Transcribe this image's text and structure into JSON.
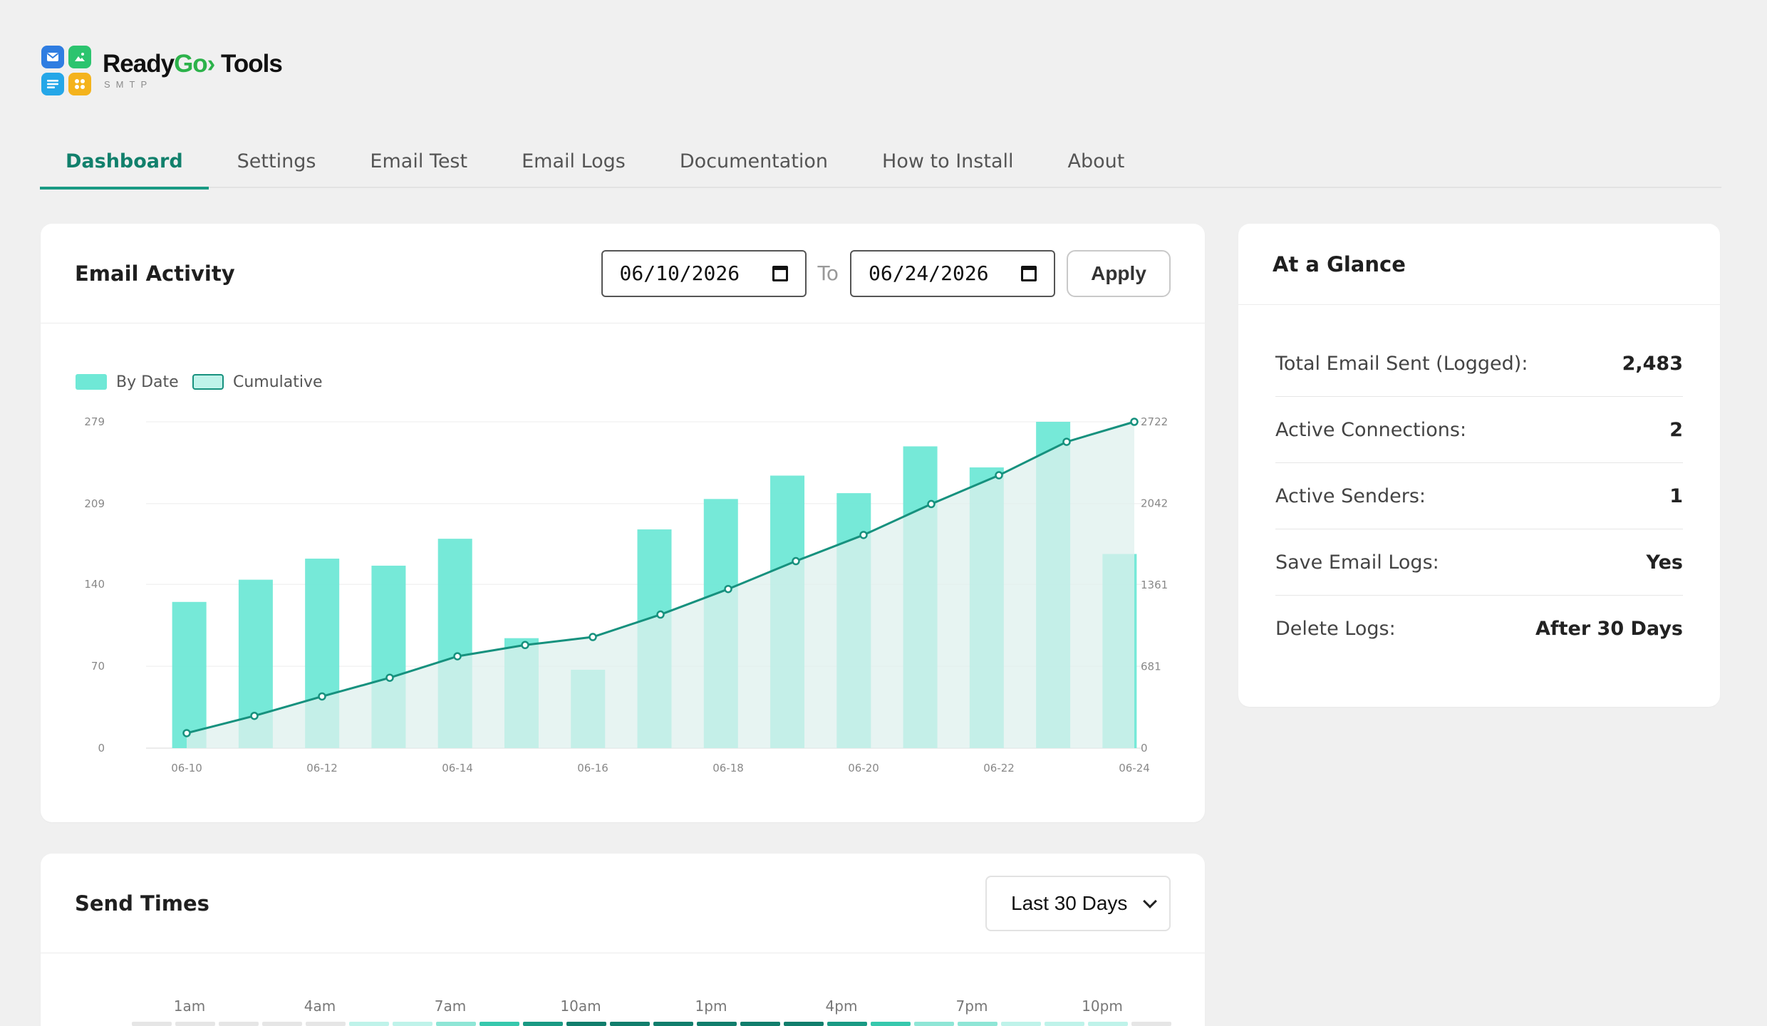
{
  "brand": {
    "name_main": "Ready",
    "name_go": "Go›",
    "name_rest": " Tools",
    "sub": "SMTP"
  },
  "tabs": [
    {
      "label": "Dashboard",
      "active": true
    },
    {
      "label": "Settings"
    },
    {
      "label": "Email Test"
    },
    {
      "label": "Email Logs"
    },
    {
      "label": "Documentation"
    },
    {
      "label": "How to Install"
    },
    {
      "label": "About"
    }
  ],
  "activity": {
    "title": "Email Activity",
    "date_from": "06/10/2026",
    "to_label": "To",
    "date_to": "06/24/2026",
    "apply_label": "Apply"
  },
  "chart_data": {
    "type": "bar",
    "categories": [
      "06-10",
      "06-11",
      "06-12",
      "06-13",
      "06-14",
      "06-15",
      "06-16",
      "06-17",
      "06-18",
      "06-19",
      "06-20",
      "06-21",
      "06-22",
      "06-23",
      "06-24"
    ],
    "x_tick_labels": [
      "06-10",
      "06-12",
      "06-14",
      "06-16",
      "06-18",
      "06-20",
      "06-22",
      "06-24"
    ],
    "series": [
      {
        "name": "By Date",
        "type": "bar",
        "axis": "left",
        "values": [
          125,
          144,
          162,
          156,
          179,
          94,
          67,
          187,
          213,
          233,
          218,
          258,
          240,
          279,
          166
        ]
      },
      {
        "name": "Cumulative",
        "type": "area",
        "axis": "right",
        "values": [
          125,
          269,
          431,
          587,
          766,
          860,
          927,
          1114,
          1327,
          1560,
          1778,
          2036,
          2276,
          2555,
          2722
        ]
      }
    ],
    "ylim_left": [
      0,
      279
    ],
    "yticks_left": [
      0,
      70,
      140,
      209,
      279
    ],
    "ylim_right": [
      0,
      2722
    ],
    "yticks_right": [
      0,
      681,
      1361,
      2042,
      2722
    ],
    "legend": "top-left",
    "grid": true,
    "colors": {
      "bar": "#6fe8d6",
      "line": "#16917e",
      "area": "#dff0ee"
    }
  },
  "sendtimes": {
    "title": "Send Times",
    "select_value": "Last 30 Days",
    "hour_labels": [
      "1am",
      "4am",
      "7am",
      "10am",
      "1pm",
      "4pm",
      "7pm",
      "10pm"
    ]
  },
  "glance": {
    "title": "At a Glance",
    "rows": [
      {
        "label": "Total Email Sent (Logged):",
        "value": "2,483"
      },
      {
        "label": "Active Connections:",
        "value": "2"
      },
      {
        "label": "Active Senders:",
        "value": "1"
      },
      {
        "label": "Save Email Logs:",
        "value": "Yes"
      },
      {
        "label": "Delete Logs:",
        "value": "After 30 Days"
      }
    ]
  }
}
